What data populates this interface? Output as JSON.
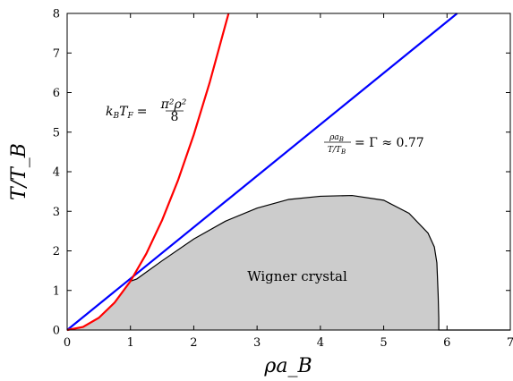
{
  "chart_data": {
    "type": "line",
    "xlabel": "ρa_B",
    "ylabel": "T/T_B",
    "xlim": [
      0,
      7
    ],
    "ylim": [
      0,
      8
    ],
    "x_ticks": [
      "0",
      "1",
      "2",
      "3",
      "4",
      "5",
      "6",
      "7"
    ],
    "y_ticks": [
      "0",
      "1",
      "2",
      "3",
      "4",
      "5",
      "6",
      "7",
      "8"
    ],
    "grid": false,
    "colors": {
      "fermi": "#ff0000",
      "gamma": "#0000ff",
      "region_fill": "#cccccc",
      "region_edge": "#000000"
    },
    "series": [
      {
        "key": "fermi",
        "formula": "y = π²x²/8",
        "x": [
          0,
          0.25,
          0.5,
          0.75,
          1.0,
          1.25,
          1.5,
          1.75,
          2.0,
          2.25,
          2.5,
          2.55
        ],
        "y": [
          0,
          0.077,
          0.308,
          0.694,
          1.234,
          1.928,
          2.776,
          3.778,
          4.935,
          6.246,
          7.711,
          8.0
        ]
      },
      {
        "key": "gamma",
        "formula": "y = x / 0.77",
        "x": [
          0,
          6.16
        ],
        "y": [
          0,
          8.0
        ]
      }
    ],
    "region": {
      "name": "Wigner crystal",
      "boundary_x": [
        0,
        0.25,
        0.5,
        0.75,
        1.0,
        1.1,
        1.5,
        2.0,
        2.5,
        3.0,
        3.5,
        4.0,
        4.5,
        5.0,
        5.4,
        5.7,
        5.8,
        5.84,
        5.86,
        5.87,
        5.87
      ],
      "boundary_y": [
        0,
        0.077,
        0.308,
        0.694,
        1.234,
        1.29,
        1.75,
        2.3,
        2.75,
        3.08,
        3.3,
        3.38,
        3.4,
        3.28,
        2.95,
        2.45,
        2.1,
        1.7,
        0.9,
        0.3,
        0
      ],
      "baseline_to_x": 7.0
    },
    "annotations": {
      "fermi_formula_lhs": "k",
      "fermi_formula_sub_b": "B",
      "fermi_formula_t": "T",
      "fermi_formula_sub_f": "F",
      "fermi_formula_eq": "=",
      "fermi_formula_num": "π²ρ²",
      "fermi_formula_den": "8",
      "gamma_formula_num": "ρa",
      "gamma_formula_num_sub": "B",
      "gamma_formula_den": "T/T",
      "gamma_formula_den_sub": "B",
      "gamma_formula_rhs": "= Γ ≈ 0.77",
      "region_label": "Wigner crystal"
    }
  }
}
